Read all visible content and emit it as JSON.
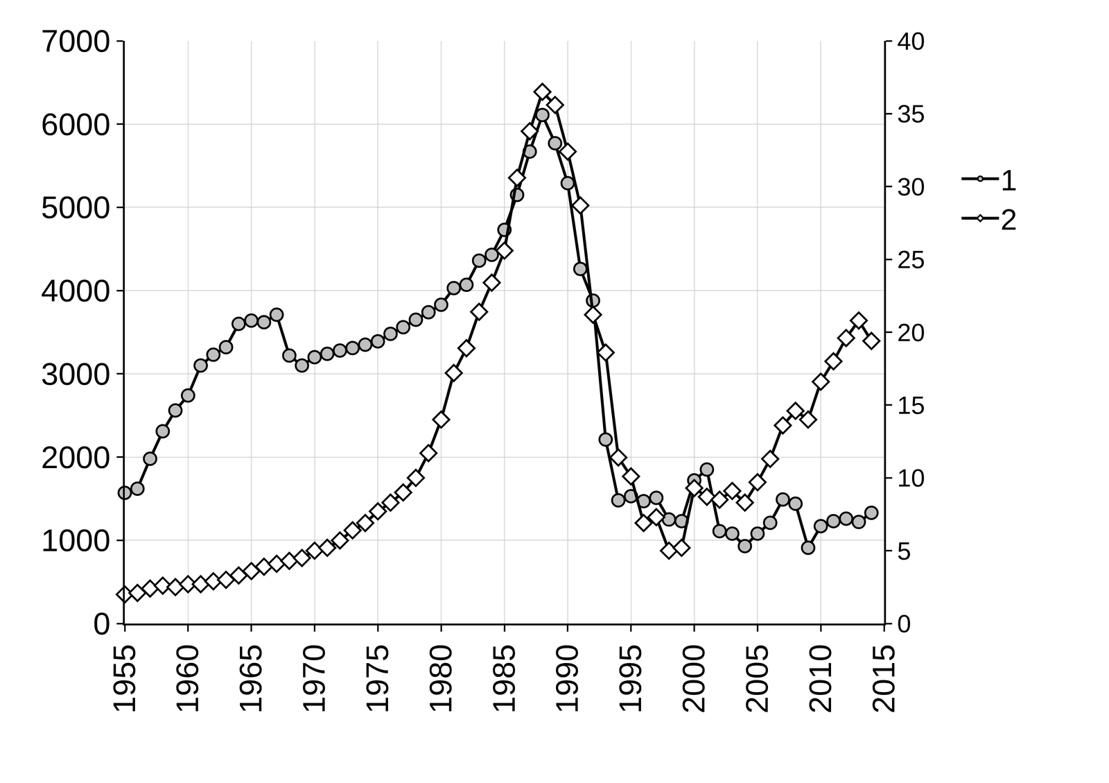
{
  "chart_data": {
    "type": "line",
    "x": [
      1955,
      1956,
      1957,
      1958,
      1959,
      1960,
      1961,
      1962,
      1963,
      1964,
      1965,
      1966,
      1967,
      1968,
      1969,
      1970,
      1971,
      1972,
      1973,
      1974,
      1975,
      1976,
      1977,
      1978,
      1979,
      1980,
      1981,
      1982,
      1983,
      1984,
      1985,
      1986,
      1987,
      1988,
      1989,
      1990,
      1991,
      1992,
      1993,
      1994,
      1995,
      1996,
      1997,
      1998,
      1999,
      2000,
      2001,
      2002,
      2003,
      2004,
      2005,
      2006,
      2007,
      2008,
      2009,
      2010,
      2011,
      2012,
      2013,
      2014
    ],
    "series": [
      {
        "name": "1",
        "color": "#bfbfbf",
        "marker": "circle",
        "axis": "y",
        "values": [
          1570,
          1620,
          1980,
          2310,
          2560,
          2740,
          3100,
          3230,
          3320,
          3600,
          3640,
          3620,
          3710,
          3220,
          3100,
          3200,
          3240,
          3280,
          3310,
          3350,
          3390,
          3480,
          3560,
          3650,
          3740,
          3830,
          4030,
          4070,
          4360,
          4430,
          4730,
          5150,
          5670,
          6110,
          5770,
          5290,
          4260,
          3880,
          2210,
          1480,
          1530,
          1470,
          1510,
          1250,
          1230,
          1720,
          1850,
          1110,
          1080,
          930,
          1080,
          1210,
          1490,
          1440,
          910,
          1170,
          1230,
          1260,
          1220,
          1330
        ]
      },
      {
        "name": "2",
        "color": "#ffffff",
        "marker": "diamond",
        "axis": "y2",
        "values": [
          2.0,
          2.1,
          2.4,
          2.6,
          2.5,
          2.7,
          2.7,
          2.9,
          3.0,
          3.3,
          3.6,
          3.9,
          4.1,
          4.3,
          4.5,
          5.0,
          5.2,
          5.7,
          6.4,
          6.9,
          7.7,
          8.3,
          9.0,
          10.0,
          11.7,
          14.0,
          17.2,
          18.9,
          21.4,
          23.4,
          25.6,
          30.6,
          33.8,
          36.5,
          35.6,
          32.4,
          28.7,
          21.2,
          18.6,
          11.4,
          10.1,
          6.9,
          7.3,
          5.0,
          5.2,
          9.3,
          8.7,
          8.5,
          9.1,
          8.3,
          9.7,
          11.3,
          13.6,
          14.6,
          14.0,
          16.6,
          18.0,
          19.6,
          20.8,
          19.4
        ]
      }
    ],
    "xlim": [
      1955,
      2015
    ],
    "xticks": [
      1955,
      1960,
      1965,
      1970,
      1975,
      1980,
      1985,
      1990,
      1995,
      2000,
      2005,
      2010,
      2015
    ],
    "ylim": [
      0,
      7000
    ],
    "yticks": [
      0,
      1000,
      2000,
      3000,
      4000,
      5000,
      6000,
      7000
    ],
    "y2lim": [
      0,
      40
    ],
    "y2ticks": [
      0,
      5,
      10,
      15,
      20,
      25,
      30,
      35,
      40
    ],
    "grid": true,
    "legend": "right"
  }
}
